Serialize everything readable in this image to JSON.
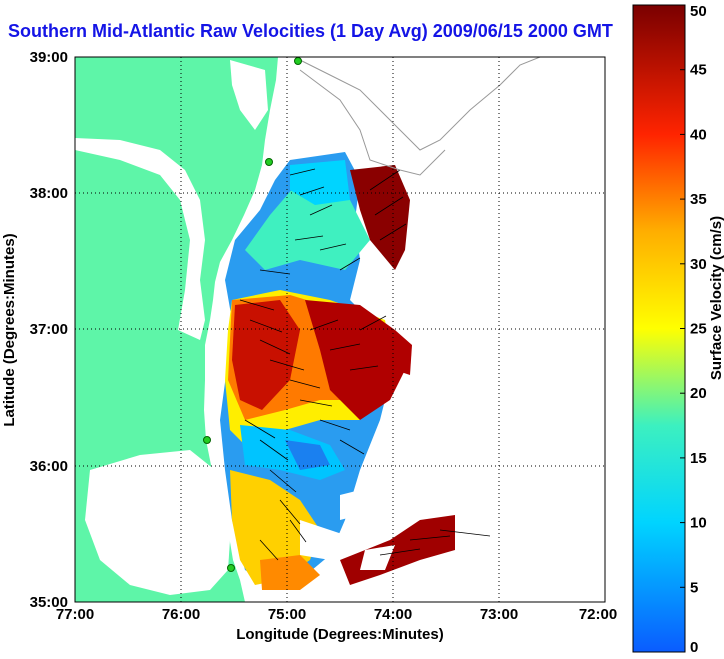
{
  "title": "Southern Mid-Atlantic Raw Velocities (1 Day Avg) 2009/06/15 2000 GMT",
  "map": {
    "xlabel": "Longitude (Degrees:Minutes)",
    "ylabel": "Latitude (Degrees:Minutes)",
    "xticks": [
      "77:00",
      "76:00",
      "75:00",
      "74:00",
      "73:00",
      "72:00"
    ],
    "yticks": [
      "39:00",
      "38:00",
      "37:00",
      "36:00",
      "35:00"
    ],
    "lon_range": [
      -77,
      -72
    ],
    "lat_range": [
      35,
      39
    ],
    "land_color": "#5ef5a8",
    "grid": "dotted"
  },
  "colorbar": {
    "label": "Surface Velocity (cm/s)",
    "ticks": [
      "0",
      "5",
      "10",
      "15",
      "20",
      "25",
      "30",
      "35",
      "40",
      "45",
      "50"
    ],
    "range": [
      0,
      50
    ],
    "colormap": "jet"
  }
}
